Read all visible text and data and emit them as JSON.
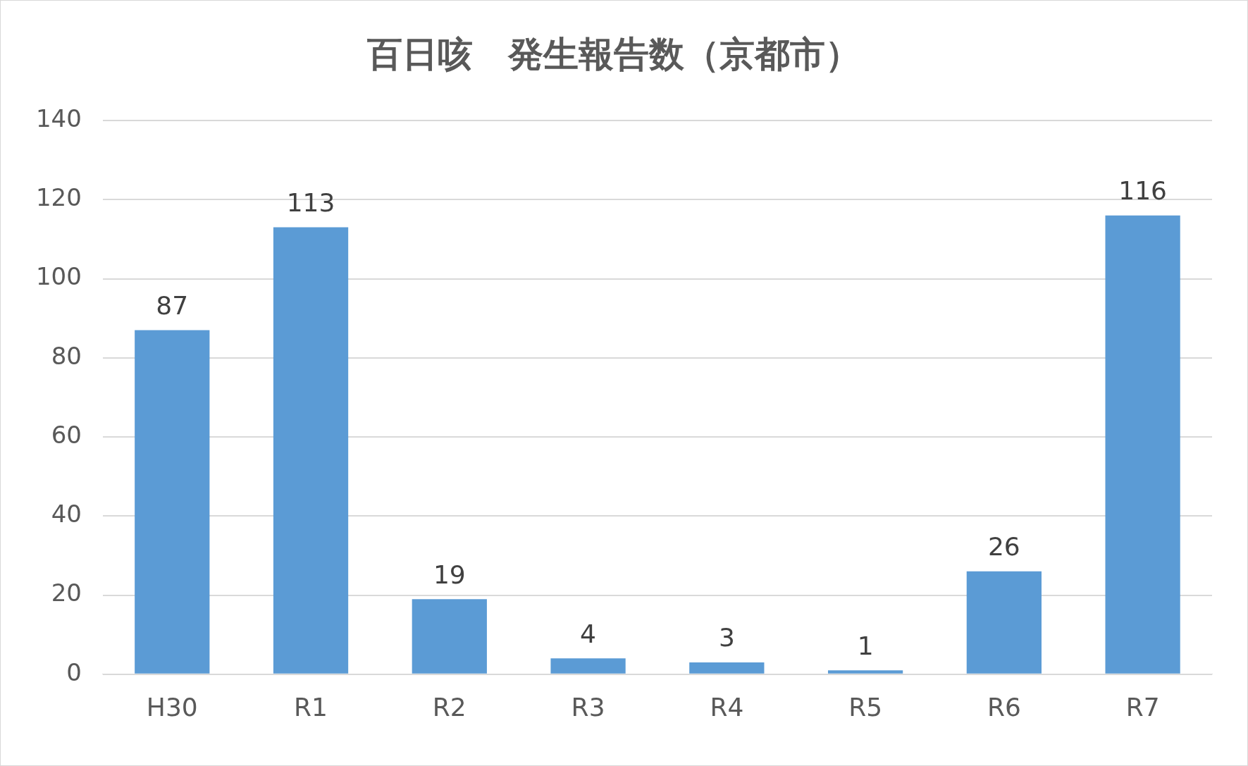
{
  "chart_data": {
    "type": "bar",
    "title": "百日咳　発生報告数（京都市）",
    "categories": [
      "H30",
      "R1",
      "R2",
      "R3",
      "R4",
      "R5",
      "R6",
      "R7"
    ],
    "values": [
      87,
      113,
      19,
      4,
      3,
      1,
      26,
      116
    ],
    "color": "#5b9bd5",
    "ylim": [
      0,
      140
    ],
    "yticks": [
      0,
      20,
      40,
      60,
      80,
      100,
      120,
      140
    ],
    "grid": "y",
    "legend": false,
    "data_labels": true
  }
}
